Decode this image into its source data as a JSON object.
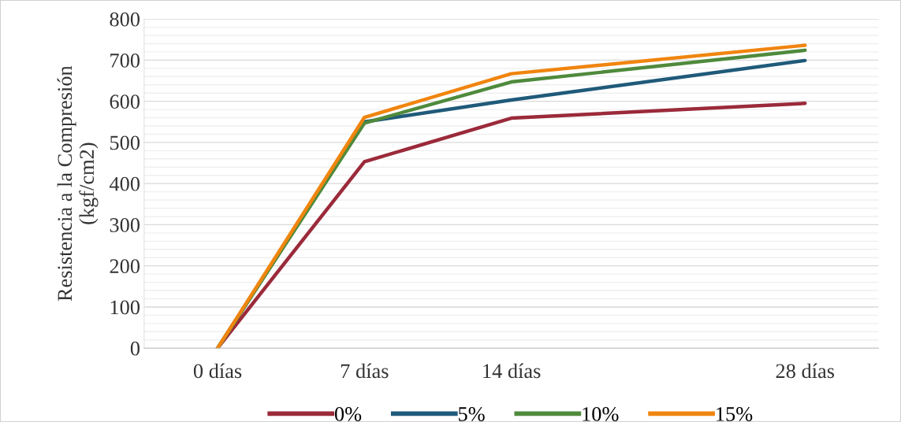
{
  "chart_data": {
    "type": "line",
    "ylabel": "Resistencia a la Compresión\n(kgf/cm2)",
    "x": [
      0,
      7,
      14,
      28
    ],
    "xlim": [
      -3.5,
      31.5
    ],
    "xticks": [
      {
        "value": 0,
        "label": "0 días"
      },
      {
        "value": 7,
        "label": "7 días"
      },
      {
        "value": 14,
        "label": "14 días"
      },
      {
        "value": 28,
        "label": "28 días"
      }
    ],
    "ylim": [
      0,
      800
    ],
    "yticks": [
      0,
      {
        "value": 20,
        "label": null
      },
      {
        "value": 40,
        "label": null
      },
      {
        "value": 60,
        "label": null
      },
      {
        "value": 80,
        "label": null
      },
      100,
      {
        "value": 120,
        "label": null
      },
      {
        "value": 140,
        "label": null
      },
      {
        "value": 160,
        "label": null
      },
      {
        "value": 180,
        "label": null
      },
      200,
      {
        "value": 220,
        "label": null
      },
      {
        "value": 240,
        "label": null
      },
      {
        "value": 260,
        "label": null
      },
      {
        "value": 280,
        "label": null
      },
      300,
      {
        "value": 320,
        "label": null
      },
      {
        "value": 340,
        "label": null
      },
      {
        "value": 360,
        "label": null
      },
      {
        "value": 380,
        "label": null
      },
      400,
      {
        "value": 420,
        "label": null
      },
      {
        "value": 440,
        "label": null
      },
      {
        "value": 460,
        "label": null
      },
      {
        "value": 480,
        "label": null
      },
      500,
      {
        "value": 520,
        "label": null
      },
      {
        "value": 540,
        "label": null
      },
      {
        "value": 560,
        "label": null
      },
      {
        "value": 580,
        "label": null
      },
      600,
      {
        "value": 620,
        "label": null
      },
      {
        "value": 640,
        "label": null
      },
      {
        "value": 660,
        "label": null
      },
      {
        "value": 680,
        "label": null
      },
      700,
      {
        "value": 720,
        "label": null
      },
      {
        "value": 740,
        "label": null
      },
      {
        "value": 760,
        "label": null
      },
      {
        "value": 780,
        "label": null
      },
      800
    ],
    "grid": "y",
    "legend": "bottom",
    "marker": "none",
    "line_style": "solid",
    "series": [
      {
        "name": "0%",
        "color": "#9b2a3a",
        "values": [
          0,
          453,
          559,
          595
        ]
      },
      {
        "name": "5%",
        "color": "#1f5a7a",
        "values": [
          0,
          550,
          603,
          699
        ]
      },
      {
        "name": "10%",
        "color": "#4f8a3c",
        "values": [
          0,
          547,
          647,
          724
        ]
      },
      {
        "name": "15%",
        "color": "#f0850f",
        "values": [
          0,
          561,
          667,
          736
        ]
      }
    ]
  }
}
